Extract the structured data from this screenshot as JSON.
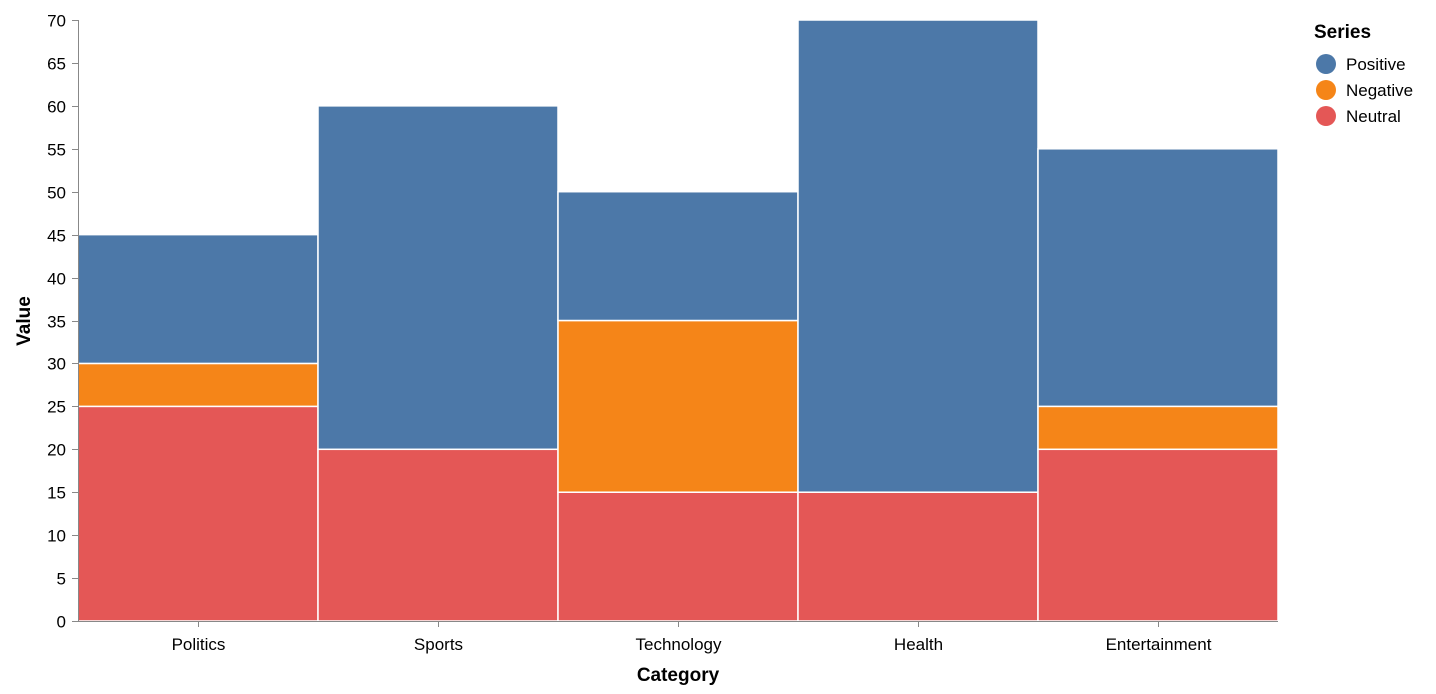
{
  "chart_data": {
    "type": "bar",
    "stacked": true,
    "categories": [
      "Politics",
      "Sports",
      "Technology",
      "Health",
      "Entertainment"
    ],
    "series": [
      {
        "name": "Neutral",
        "color": "#e45756",
        "values": [
          25,
          20,
          15,
          15,
          20
        ]
      },
      {
        "name": "Negative",
        "color": "#f58518",
        "values": [
          5,
          0,
          20,
          0,
          5
        ]
      },
      {
        "name": "Positive",
        "color": "#4c78a8",
        "values": [
          15,
          40,
          15,
          55,
          30
        ]
      }
    ],
    "legend_order": [
      "Positive",
      "Negative",
      "Neutral"
    ],
    "xlabel": "Category",
    "ylabel": "Value",
    "ylim": [
      0,
      70
    ],
    "yticks": [
      0,
      5,
      10,
      15,
      20,
      25,
      30,
      35,
      40,
      45,
      50,
      55,
      60,
      65,
      70
    ],
    "grid": false,
    "legend": {
      "title": "Series",
      "position": "top-right"
    }
  }
}
